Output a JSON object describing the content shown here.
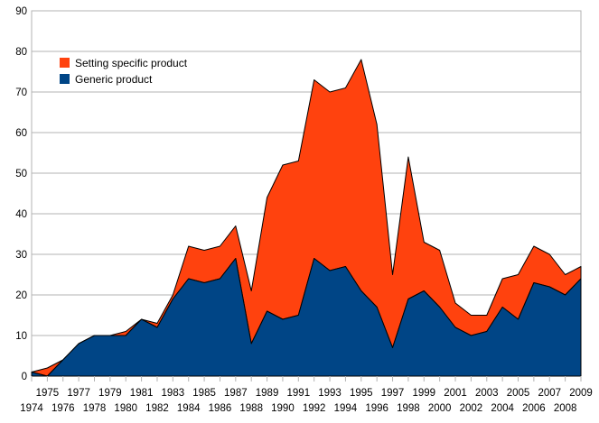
{
  "chart_data": {
    "type": "area",
    "stacked": true,
    "title": "",
    "xlabel": "",
    "ylabel": "",
    "ylim": [
      0,
      90
    ],
    "yticks": [
      0,
      10,
      20,
      30,
      40,
      50,
      60,
      70,
      80,
      90
    ],
    "grid": "horizontal",
    "legend_position": "top-left",
    "x": [
      1974,
      1975,
      1976,
      1977,
      1978,
      1979,
      1980,
      1981,
      1982,
      1983,
      1984,
      1985,
      1986,
      1987,
      1988,
      1989,
      1990,
      1991,
      1992,
      1993,
      1994,
      1995,
      1996,
      1997,
      1998,
      1999,
      2000,
      2001,
      2002,
      2003,
      2004,
      2005,
      2006,
      2007,
      2008,
      2009
    ],
    "series": [
      {
        "name": "Generic product",
        "color": "#004586",
        "values": [
          1,
          0,
          4,
          8,
          10,
          10,
          10,
          14,
          12,
          19,
          24,
          23,
          24,
          29,
          8,
          16,
          14,
          15,
          29,
          26,
          27,
          21,
          17,
          7,
          19,
          21,
          17,
          12,
          10,
          11,
          17,
          14,
          23,
          22,
          20,
          24
        ]
      },
      {
        "name": "Setting specific product",
        "color": "#ff420e",
        "values": [
          0,
          2,
          0,
          0,
          0,
          0,
          1,
          0,
          1,
          1,
          8,
          8,
          8,
          8,
          13,
          28,
          38,
          38,
          44,
          44,
          44,
          57,
          45,
          18,
          35,
          12,
          14,
          6,
          5,
          4,
          7,
          11,
          9,
          8,
          5,
          3
        ]
      }
    ]
  }
}
